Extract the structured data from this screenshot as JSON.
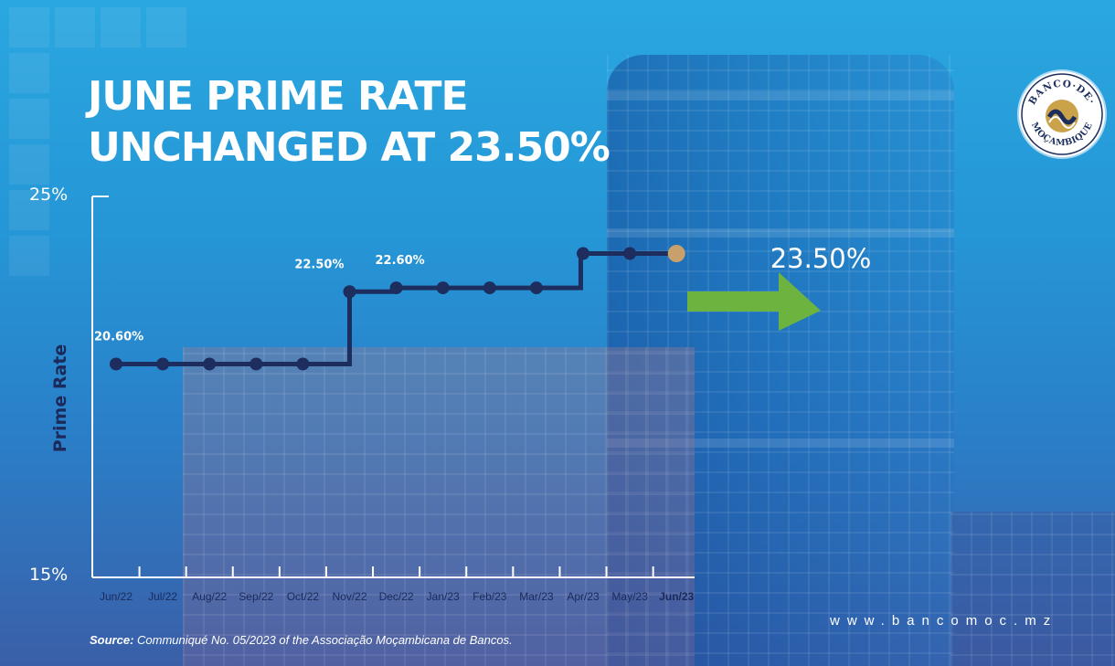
{
  "header": {
    "title_line1": "JUNE PRIME RATE",
    "title_line2": "UNCHANGED AT 23.50%"
  },
  "logo": {
    "text_top": "BANCO·DE·",
    "text_bottom": "MOÇAMBIQUE",
    "icon": "banco-de-mocambique-seal"
  },
  "chart_data": {
    "type": "line",
    "step": true,
    "ylabel": "Prime Rate",
    "ylim": [
      15,
      25
    ],
    "ylim_labels": [
      "15%",
      "25%"
    ],
    "categories": [
      "Jun/22",
      "Jul/22",
      "Aug/22",
      "Sep/22",
      "Oct/22",
      "Nov/22",
      "Dec/22",
      "Jan/23",
      "Feb/23",
      "Mar/23",
      "Apr/23",
      "May/23",
      "Jun/23"
    ],
    "values": [
      20.6,
      20.6,
      20.6,
      20.6,
      20.6,
      22.5,
      22.6,
      22.6,
      22.6,
      22.6,
      23.5,
      23.5,
      23.5
    ],
    "annotations": [
      {
        "index": 0,
        "text": "20.60%"
      },
      {
        "index": 5,
        "text": "22.50%"
      },
      {
        "index": 6,
        "text": "22.60%"
      }
    ],
    "final_label": "23.50%",
    "highlight_last_category": true,
    "colors": {
      "line": "#1c2d5e",
      "marker": "#1c2d5e",
      "last_marker": "#c7a06b",
      "arrow": "#6cb33f",
      "axis": "#ffffff"
    }
  },
  "footer": {
    "source_prefix": "Source:",
    "source_text": "Communiqué No. 05/2023 of the Associação Moçambicana de Bancos.",
    "website": "www.bancomoc.mz"
  }
}
